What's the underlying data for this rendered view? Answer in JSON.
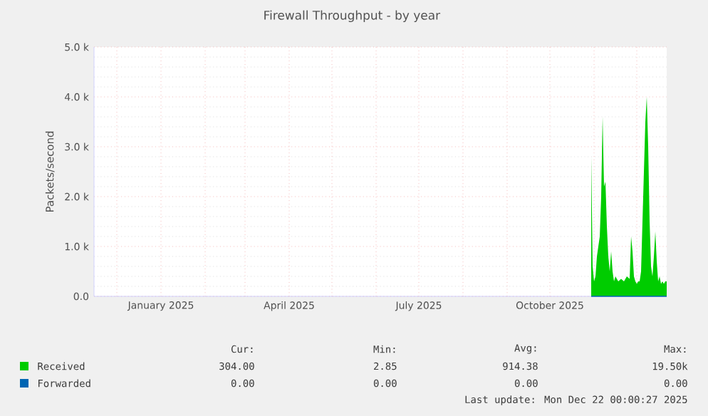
{
  "chart_data": {
    "type": "area",
    "title": "Firewall Throughput - by year",
    "ylabel": "Packets/second",
    "xlim": [
      "2024-11-15",
      "2025-12-22"
    ],
    "ylim": [
      0,
      5000
    ],
    "xticks": [
      {
        "value": "2024-12-01",
        "label": null
      },
      {
        "value": "2025-01-01",
        "label": "January 2025"
      },
      {
        "value": "2025-02-01",
        "label": null
      },
      {
        "value": "2025-03-01",
        "label": null
      },
      {
        "value": "2025-04-01",
        "label": "April 2025"
      },
      {
        "value": "2025-05-01",
        "label": null
      },
      {
        "value": "2025-06-01",
        "label": null
      },
      {
        "value": "2025-07-01",
        "label": "July 2025"
      },
      {
        "value": "2025-08-01",
        "label": null
      },
      {
        "value": "2025-09-01",
        "label": null
      },
      {
        "value": "2025-10-01",
        "label": "October 2025"
      },
      {
        "value": "2025-11-01",
        "label": null
      },
      {
        "value": "2025-12-01",
        "label": null
      }
    ],
    "yticks": [
      {
        "value": 0,
        "label": "0.0"
      },
      {
        "value": 1000,
        "label": "1.0 k"
      },
      {
        "value": 2000,
        "label": "2.0 k"
      },
      {
        "value": 3000,
        "label": "3.0 k"
      },
      {
        "value": 4000,
        "label": "4.0 k"
      },
      {
        "value": 5000,
        "label": "5.0 k"
      }
    ],
    "grid": true,
    "legend": "bottom",
    "series": [
      {
        "name": "Received",
        "color": "#00cc00",
        "x": [
          "2025-10-30",
          "2025-10-31",
          "2025-11-01",
          "2025-11-02",
          "2025-11-03",
          "2025-11-04",
          "2025-11-05",
          "2025-11-06",
          "2025-11-07",
          "2025-11-08",
          "2025-11-09",
          "2025-11-10",
          "2025-11-11",
          "2025-11-12",
          "2025-11-13",
          "2025-11-14",
          "2025-11-15",
          "2025-11-16",
          "2025-11-18",
          "2025-11-20",
          "2025-11-22",
          "2025-11-24",
          "2025-11-26",
          "2025-11-27",
          "2025-11-28",
          "2025-11-29",
          "2025-11-30",
          "2025-12-01",
          "2025-12-02",
          "2025-12-03",
          "2025-12-04",
          "2025-12-05",
          "2025-12-06",
          "2025-12-07",
          "2025-12-08",
          "2025-12-09",
          "2025-12-10",
          "2025-12-11",
          "2025-12-12",
          "2025-12-13",
          "2025-12-14",
          "2025-12-15",
          "2025-12-16",
          "2025-12-17",
          "2025-12-18",
          "2025-12-19",
          "2025-12-20",
          "2025-12-21",
          "2025-12-22"
        ],
        "values": [
          2800,
          600,
          300,
          400,
          800,
          1000,
          1200,
          2000,
          3600,
          2200,
          2300,
          1400,
          800,
          500,
          900,
          500,
          300,
          400,
          300,
          350,
          300,
          400,
          350,
          1200,
          900,
          400,
          300,
          250,
          300,
          300,
          500,
          1500,
          2500,
          3500,
          4000,
          3000,
          1500,
          600,
          400,
          800,
          1300,
          700,
          300,
          400,
          250,
          300,
          250,
          300,
          300
        ]
      },
      {
        "name": "Forwarded",
        "type": "line",
        "color": "#0066b3",
        "x": [
          "2025-10-30",
          "2025-12-22"
        ],
        "values": [
          0,
          0
        ]
      }
    ],
    "annotations": [
      "Cur:",
      "Min:",
      "Avg:",
      "Max:",
      "304.00",
      "2.85",
      "914.38",
      "19.50k",
      "0.00",
      "0.00",
      "0.00",
      "0.00",
      "Last update: Mon Dec 22 00:00:27 2025"
    ]
  }
}
